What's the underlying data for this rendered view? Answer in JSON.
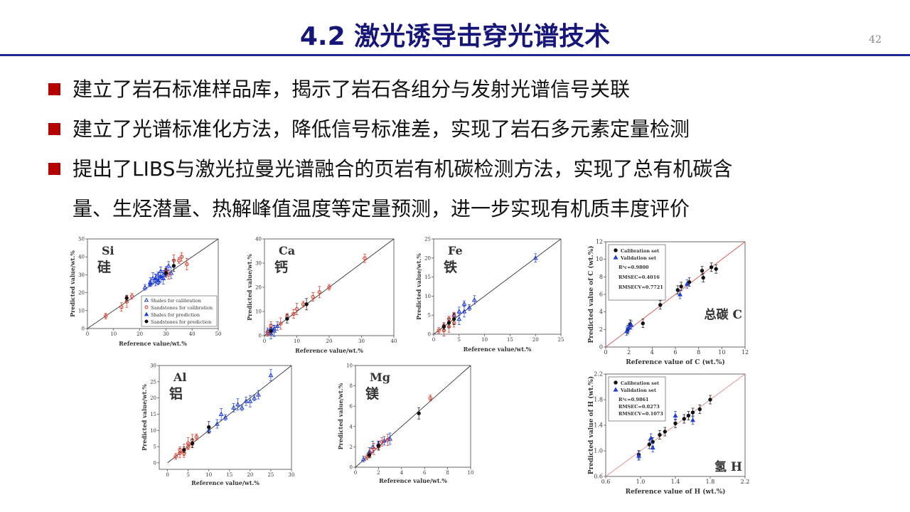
{
  "header": {
    "title": "4.2 激光诱导击穿光谱技术",
    "page_number": "42"
  },
  "bullets": [
    {
      "text": "建立了岩石标准样品库，揭示了岩石各组分与发射光谱信号关联"
    },
    {
      "text": "建立了光谱标准化方法，降低信号标准差，实现了岩石多元素定量检测"
    },
    {
      "line1": "提出了LIBS与激光拉曼光谱融合的页岩有机碳检测方法，实现了总有机碳含",
      "line2": "量、生烃潜量、热解峰值温度等定量预测，进一步实现有机质丰度评价"
    }
  ],
  "colors": {
    "title": "#16167a",
    "bullet_marker": "#b30000",
    "rule": "#1f2a8c",
    "label_red": "#cc0000",
    "series_blue": "#1f3fd6",
    "series_red": "#e0301e",
    "series_black": "#111111",
    "diag_black": "#333333",
    "diag_red": "#d9534f"
  },
  "chart_data": [
    {
      "id": "si",
      "type": "scatter",
      "element": "Si",
      "element_cn": "硅",
      "xlabel": "Reference value/wt.%",
      "ylabel": "Predicted value/wt.%",
      "xlim": [
        0,
        50
      ],
      "ylim": [
        0,
        50
      ],
      "xticks": [
        "0",
        "10",
        "20",
        "30",
        "40",
        "50"
      ],
      "yticks": [
        "0",
        "10",
        "20",
        "30",
        "40",
        "50"
      ],
      "legend": [
        "Shales for calibration",
        "Sandstones for calibration",
        "Shales for prediction",
        "Sandstones for prediction"
      ],
      "series": [
        {
          "name": "Shales for calibration",
          "marker": "open-triangle",
          "color": "blue",
          "points": [
            [
              22,
              23
            ],
            [
              24,
              26
            ],
            [
              26,
              27
            ],
            [
              27,
              30
            ],
            [
              28,
              32
            ],
            [
              29,
              28
            ],
            [
              30,
              33
            ],
            [
              31,
              35
            ],
            [
              25,
              28
            ],
            [
              27,
              26
            ],
            [
              29,
              30
            ],
            [
              32,
              31
            ]
          ]
        },
        {
          "name": "Sandstones for calibration",
          "marker": "open-circle",
          "color": "red",
          "points": [
            [
              7,
              7
            ],
            [
              13,
              12
            ],
            [
              15,
              15
            ],
            [
              17,
              18
            ],
            [
              31,
              30
            ],
            [
              33,
              38
            ],
            [
              35,
              38
            ],
            [
              36,
              40
            ],
            [
              38,
              36
            ],
            [
              30,
              32
            ]
          ]
        },
        {
          "name": "Shales for prediction",
          "marker": "triangle",
          "color": "blue",
          "points": [
            [
              24,
              25
            ],
            [
              26,
              28
            ],
            [
              28,
              29
            ],
            [
              30,
              31
            ],
            [
              27,
              27
            ]
          ]
        },
        {
          "name": "Sandstones for prediction",
          "marker": "dot",
          "color": "black",
          "points": [
            [
              15,
              17
            ],
            [
              30,
              31
            ],
            [
              33,
              35
            ]
          ]
        }
      ]
    },
    {
      "id": "ca",
      "type": "scatter",
      "element": "Ca",
      "element_cn": "钙",
      "xlabel": "Reference value/wt.%",
      "ylabel": "Predicted value/wt.%",
      "xlim": [
        0,
        40
      ],
      "ylim": [
        0,
        40
      ],
      "xticks": [
        "0",
        "10",
        "20",
        "30",
        "40"
      ],
      "yticks": [
        "0",
        "10",
        "20",
        "30",
        "40"
      ],
      "series": [
        {
          "name": "",
          "marker": "open-triangle",
          "color": "blue",
          "points": [
            [
              1,
              2
            ],
            [
              2,
              3
            ],
            [
              2,
              1
            ],
            [
              3,
              3
            ],
            [
              4,
              4
            ],
            [
              3,
              2
            ]
          ]
        },
        {
          "name": "",
          "marker": "open-circle",
          "color": "red",
          "points": [
            [
              1,
              1
            ],
            [
              2,
              4
            ],
            [
              5,
              5
            ],
            [
              7,
              8
            ],
            [
              9,
              9
            ],
            [
              10,
              11
            ],
            [
              12,
              13
            ],
            [
              15,
              16
            ],
            [
              17,
              18
            ],
            [
              20,
              20
            ],
            [
              31,
              32
            ]
          ]
        },
        {
          "name": "",
          "marker": "dot",
          "color": "black",
          "points": [
            [
              2,
              2
            ],
            [
              7,
              7
            ],
            [
              13,
              13
            ]
          ]
        }
      ]
    },
    {
      "id": "fe",
      "type": "scatter",
      "element": "Fe",
      "element_cn": "铁",
      "xlabel": "Reference value/wt.%",
      "ylabel": "Predicted value/wt.%",
      "xlim": [
        0,
        25
      ],
      "ylim": [
        0,
        25
      ],
      "xticks": [
        "0",
        "5",
        "10",
        "15",
        "20",
        "25"
      ],
      "yticks": [
        "0",
        "5",
        "10",
        "15",
        "20",
        "25"
      ],
      "series": [
        {
          "name": "",
          "marker": "open-triangle",
          "color": "blue",
          "points": [
            [
              4,
              5
            ],
            [
              5,
              6
            ],
            [
              6,
              6
            ],
            [
              7,
              7
            ],
            [
              8,
              9
            ],
            [
              5,
              4
            ],
            [
              6,
              8
            ],
            [
              20,
              20
            ]
          ]
        },
        {
          "name": "",
          "marker": "open-circle",
          "color": "red",
          "points": [
            [
              1,
              1
            ],
            [
              2,
              2
            ],
            [
              3,
              2
            ],
            [
              3,
              4
            ],
            [
              4,
              3
            ],
            [
              2,
              1
            ],
            [
              4,
              5
            ]
          ]
        },
        {
          "name": "",
          "marker": "dot",
          "color": "black",
          "points": [
            [
              2,
              2
            ],
            [
              3,
              3
            ],
            [
              4,
              4
            ]
          ]
        }
      ]
    },
    {
      "id": "c",
      "type": "scatter",
      "element_label": "总碳 C",
      "xlabel": "Reference value of C (wt.%)",
      "ylabel": "Predicted value of C (wt.%)",
      "xlim": [
        0,
        12
      ],
      "ylim": [
        0,
        12
      ],
      "xticks": [
        "0",
        "2",
        "4",
        "6",
        "8",
        "10",
        "12"
      ],
      "yticks": [
        "0",
        "2",
        "4",
        "6",
        "8",
        "10",
        "12"
      ],
      "legend": [
        "Calibration set",
        "Validation set"
      ],
      "stats": [
        "R²c=0.9800",
        "RMSEC=0.4016",
        "RMSECV=0.7721"
      ],
      "series": [
        {
          "name": "Calibration set",
          "marker": "dot",
          "color": "black",
          "points": [
            [
              1.9,
              2.0
            ],
            [
              2.1,
              2.6
            ],
            [
              3.2,
              2.7
            ],
            [
              4.7,
              4.8
            ],
            [
              6.2,
              6.5
            ],
            [
              6.5,
              6.9
            ],
            [
              7.2,
              7.4
            ],
            [
              8.3,
              8.7
            ],
            [
              8.4,
              7.9
            ],
            [
              9.1,
              9.1
            ],
            [
              9.5,
              8.9
            ]
          ]
        },
        {
          "name": "Validation set",
          "marker": "triangle",
          "color": "blue",
          "points": [
            [
              1.8,
              1.8
            ],
            [
              2.0,
              2.2
            ],
            [
              2.2,
              2.5
            ],
            [
              6.4,
              6.0
            ],
            [
              7.0,
              7.2
            ]
          ]
        }
      ]
    },
    {
      "id": "al",
      "type": "scatter",
      "element": "Al",
      "element_cn": "铝",
      "xlabel": "Reference value/wt.%",
      "ylabel": "Predicted value/wt.%",
      "xlim": [
        -2,
        30
      ],
      "ylim": [
        -2,
        30
      ],
      "xticks": [
        "0",
        "5",
        "10",
        "15",
        "20",
        "25",
        "30"
      ],
      "yticks": [
        "0",
        "5",
        "10",
        "15",
        "20",
        "25",
        "30"
      ],
      "series": [
        {
          "name": "",
          "marker": "open-triangle",
          "color": "blue",
          "points": [
            [
              10,
              10
            ],
            [
              12,
              12
            ],
            [
              13,
              15
            ],
            [
              14,
              14
            ],
            [
              16,
              17
            ],
            [
              17,
              18
            ],
            [
              18,
              17
            ],
            [
              19,
              19
            ],
            [
              20,
              19
            ],
            [
              21,
              20
            ],
            [
              22,
              21
            ],
            [
              25,
              27
            ]
          ]
        },
        {
          "name": "",
          "marker": "open-circle",
          "color": "red",
          "points": [
            [
              2,
              2
            ],
            [
              3,
              3
            ],
            [
              4,
              4
            ],
            [
              5,
              5
            ],
            [
              6,
              6
            ],
            [
              6,
              7
            ],
            [
              7,
              8
            ],
            [
              4,
              3
            ],
            [
              5,
              6
            ],
            [
              3,
              4
            ]
          ]
        },
        {
          "name": "",
          "marker": "dot",
          "color": "black",
          "points": [
            [
              4,
              4
            ],
            [
              6,
              6
            ],
            [
              10,
              11
            ]
          ]
        }
      ]
    },
    {
      "id": "mg",
      "type": "scatter",
      "element": "Mg",
      "element_cn": "镁",
      "xlabel": "Reference value/wt.%",
      "ylabel": "Predicted value/wt.%",
      "xlim": [
        0,
        10
      ],
      "ylim": [
        0,
        10
      ],
      "xticks": [
        "0",
        "2",
        "4",
        "6",
        "8",
        "10"
      ],
      "yticks": [
        "0",
        "2",
        "4",
        "6",
        "8",
        "10"
      ],
      "series": [
        {
          "name": "",
          "marker": "open-triangle",
          "color": "blue",
          "points": [
            [
              0.7,
              0.8
            ],
            [
              1.2,
              1.5
            ],
            [
              1.5,
              2.0
            ],
            [
              2.0,
              2.3
            ],
            [
              2.5,
              2.6
            ],
            [
              3.0,
              2.8
            ]
          ]
        },
        {
          "name": "",
          "marker": "open-circle",
          "color": "red",
          "points": [
            [
              1.0,
              1.0
            ],
            [
              1.3,
              1.4
            ],
            [
              1.6,
              1.8
            ],
            [
              2.0,
              2.0
            ],
            [
              2.3,
              2.5
            ],
            [
              2.8,
              2.7
            ],
            [
              6.5,
              6.8
            ]
          ]
        },
        {
          "name": "",
          "marker": "dot",
          "color": "black",
          "points": [
            [
              1.2,
              1.2
            ],
            [
              2.0,
              2.1
            ],
            [
              5.5,
              5.3
            ]
          ]
        }
      ]
    },
    {
      "id": "h",
      "type": "scatter",
      "element_label": "氢 H",
      "xlabel": "Reference value of H (wt.%)",
      "ylabel": "Predicted value of H (wt.%)",
      "xlim": [
        0.6,
        2.2
      ],
      "ylim": [
        0.6,
        2.2
      ],
      "xticks": [
        "0.6",
        "1.0",
        "1.4",
        "1.8",
        "2.2"
      ],
      "yticks": [
        "0.6",
        "1.0",
        "1.4",
        "1.8",
        "2.2"
      ],
      "legend": [
        "Calibration set",
        "Validation set"
      ],
      "stats": [
        "R²c=0.9861",
        "RMSEC=0.0273",
        "RMSECV=0.1073"
      ],
      "series": [
        {
          "name": "Calibration set",
          "marker": "dot",
          "color": "black",
          "points": [
            [
              0.98,
              0.94
            ],
            [
              1.1,
              1.1
            ],
            [
              1.14,
              1.14
            ],
            [
              1.22,
              1.25
            ],
            [
              1.28,
              1.3
            ],
            [
              1.4,
              1.43
            ],
            [
              1.5,
              1.5
            ],
            [
              1.55,
              1.55
            ],
            [
              1.6,
              1.6
            ],
            [
              1.68,
              1.65
            ],
            [
              1.8,
              1.8
            ]
          ]
        },
        {
          "name": "Validation set",
          "marker": "triangle",
          "color": "blue",
          "points": [
            [
              0.98,
              0.92
            ],
            [
              1.12,
              1.2
            ],
            [
              1.14,
              1.05
            ],
            [
              1.4,
              1.55
            ],
            [
              1.6,
              1.48
            ]
          ]
        }
      ]
    }
  ]
}
